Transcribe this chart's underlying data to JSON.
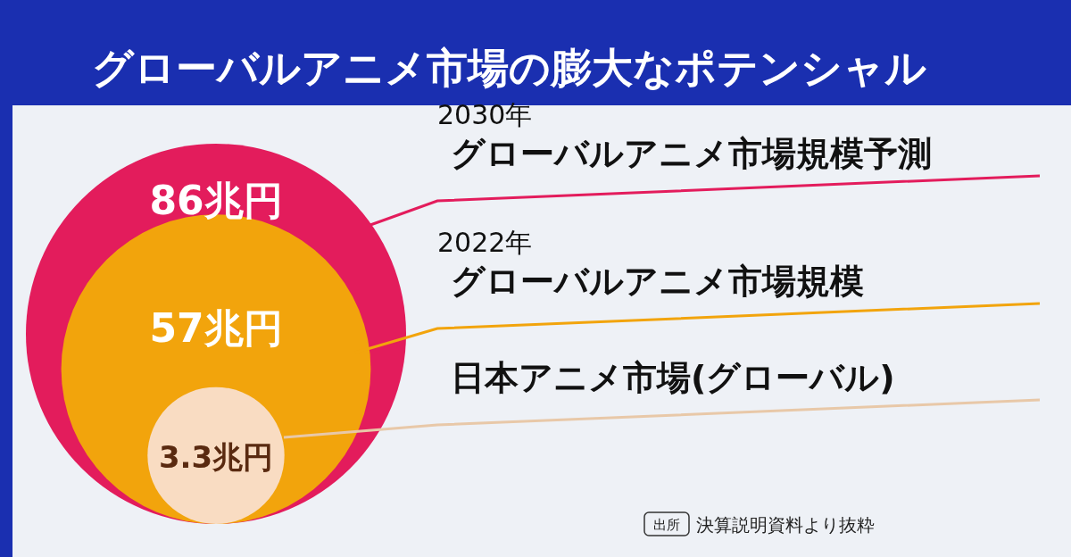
{
  "chart_data": {
    "type": "other",
    "title": "グローバルアニメ市場の膨大なポテンシャル",
    "categories": [
      "グローバルアニメ市場規模予測",
      "グローバルアニメ市場規模",
      "日本アニメ市場(グローバル)"
    ],
    "values": [
      86,
      57,
      3.3
    ],
    "value_labels": [
      "86兆円",
      "57兆円",
      "3.3兆円"
    ],
    "colors": [
      "#e31c5c",
      "#f2a40c",
      "#f9dcc2"
    ],
    "annotations": [
      {
        "text": "2030年",
        "x": "グローバルアニメ市場規模予測"
      },
      {
        "text": "2022年",
        "x": "グローバルアニメ市場規模"
      },
      "出所",
      "決算説明資料より抜粋"
    ]
  }
}
